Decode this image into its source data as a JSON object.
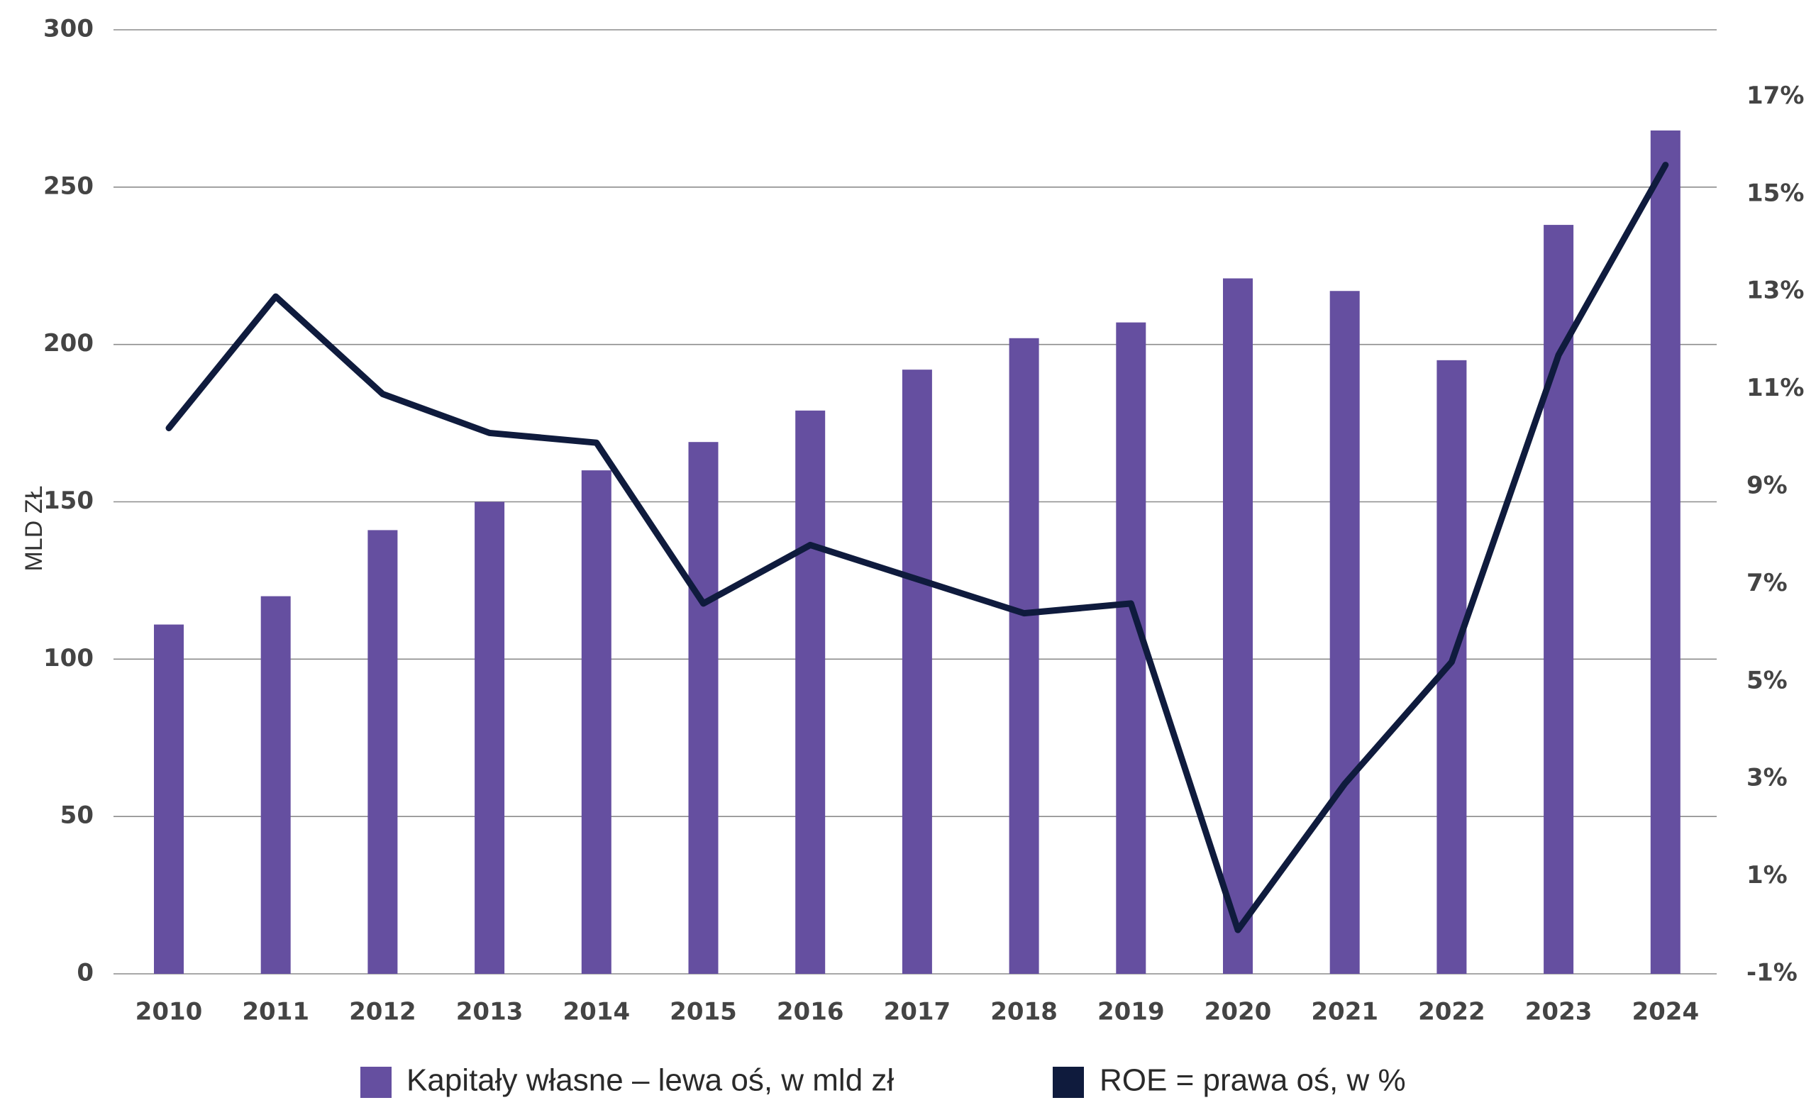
{
  "chart_data": {
    "type": "bar",
    "categories": [
      "2010",
      "2011",
      "2012",
      "2013",
      "2014",
      "2015",
      "2016",
      "2017",
      "2018",
      "2019",
      "2020",
      "2021",
      "2022",
      "2023",
      "2024"
    ],
    "series": [
      {
        "name": "Kapitały własne – lewa oś, w mld zł",
        "type": "bar",
        "axis": "left",
        "color": "#654fa0",
        "values": [
          111,
          120,
          141,
          150,
          160,
          169,
          179,
          192,
          202,
          207,
          221,
          217,
          195,
          238,
          268
        ]
      },
      {
        "name": "ROE = prawa oś, w %",
        "type": "line",
        "axis": "right",
        "color": "#0f1b3d",
        "values": [
          10.2,
          12.9,
          10.9,
          10.1,
          9.9,
          6.6,
          7.8,
          7.1,
          6.4,
          6.6,
          -0.1,
          2.9,
          5.4,
          11.7,
          15.6
        ]
      }
    ],
    "ylabel": "MLD ZŁ",
    "ylim": [
      0,
      300
    ],
    "yticks": [
      "0",
      "50",
      "100",
      "150",
      "200",
      "250",
      "300"
    ],
    "y2lim": [
      -1,
      18.4
    ],
    "y2ticks": [
      "-1%",
      "1%",
      "3%",
      "5%",
      "7%",
      "9%",
      "11%",
      "13%",
      "15%",
      "17%"
    ],
    "grid": true,
    "legend": "bottom"
  }
}
